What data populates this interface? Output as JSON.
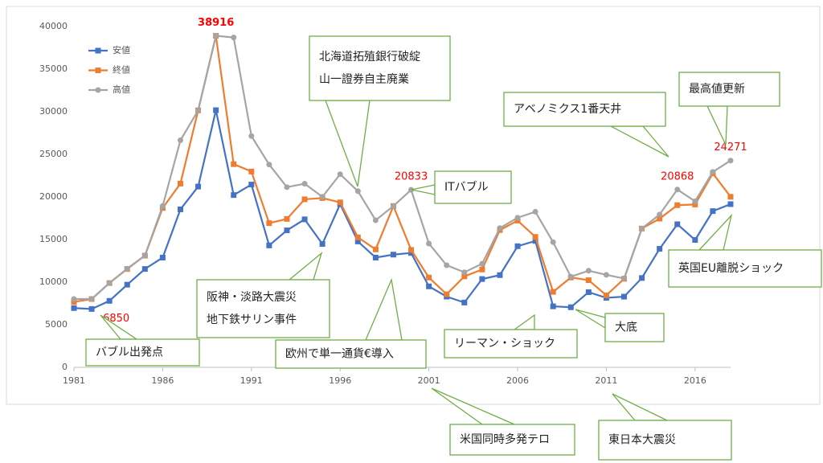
{
  "chart_data": {
    "type": "line",
    "x": [
      1981,
      1982,
      1983,
      1984,
      1985,
      1986,
      1987,
      1988,
      1989,
      1990,
      1991,
      1992,
      1993,
      1994,
      1995,
      1996,
      1997,
      1998,
      1999,
      2000,
      2001,
      2002,
      2003,
      2004,
      2005,
      2006,
      2007,
      2008,
      2009,
      2010,
      2011,
      2012,
      2013,
      2014,
      2015,
      2016,
      2017,
      2018
    ],
    "series": [
      {
        "name": "安値",
        "color": "#4472c4",
        "marker": "square",
        "labeled": [
          1
        ],
        "values": [
          6956,
          6850,
          7803,
          9703,
          11545,
          12881,
          18544,
          21217,
          30183,
          20221,
          21456,
          14309,
          16078,
          17369,
          14485,
          19161,
          14775,
          12879,
          13232,
          13423,
          9504,
          8303,
          7607,
          10365,
          10825,
          14219,
          14837,
          7162,
          7055,
          8824,
          8160,
          8295,
          10487,
          13910,
          16795,
          14952,
          18336,
          19156
        ]
      },
      {
        "name": "終値",
        "color": "#ed7d31",
        "marker": "square",
        "labeled": [
          8
        ],
        "values": [
          7681,
          8016,
          9893,
          11542,
          13113,
          18701,
          21564,
          30159,
          38916,
          23849,
          22984,
          16925,
          17417,
          19723,
          19868,
          19361,
          15259,
          13842,
          18934,
          13786,
          10543,
          8579,
          10677,
          11489,
          16111,
          17226,
          15308,
          8860,
          10546,
          10229,
          8455,
          10395,
          16291,
          17451,
          19034,
          19114,
          22765,
          20015
        ]
      },
      {
        "name": "高値",
        "color": "#a5a5a5",
        "marker": "circle",
        "labeled": [
          19,
          34,
          37
        ],
        "values": [
          8019,
          8026,
          9893,
          11578,
          13129,
          18936,
          26646,
          30159,
          38916,
          38713,
          27147,
          23801,
          21148,
          21553,
          20012,
          22667,
          20681,
          17264,
          18934,
          20833,
          14529,
          11980,
          11161,
          12163,
          16344,
          17563,
          18262,
          14691,
          10640,
          11339,
          10857,
          10433,
          16291,
          17935,
          20868,
          19494,
          22939,
          24271
        ]
      }
    ],
    "xlim": [
      1981,
      2018
    ],
    "xticks": [
      1981,
      1986,
      1991,
      1996,
      2001,
      2006,
      2011,
      2016
    ],
    "ylim": [
      0,
      40000
    ],
    "yticks": [
      0,
      5000,
      10000,
      15000,
      20000,
      25000,
      30000,
      35000,
      40000
    ],
    "legend": "top-left",
    "annotations": [
      {
        "lines": [
          "北海道拓殖銀行破綻",
          "山一證券自主廃業"
        ]
      },
      {
        "lines": [
          "ITバブル"
        ]
      },
      {
        "lines": [
          "アベノミクス1番天井"
        ]
      },
      {
        "lines": [
          "最高値更新"
        ]
      },
      {
        "lines": [
          "英国EU離脱ショック"
        ]
      },
      {
        "lines": [
          "阪神・淡路大震災",
          "地下鉄サリン事件"
        ]
      },
      {
        "lines": [
          "バブル出発点"
        ]
      },
      {
        "lines": [
          "欧州で単一通貨€導入"
        ]
      },
      {
        "lines": [
          "リーマン・ショック"
        ]
      },
      {
        "lines": [
          "大底"
        ]
      },
      {
        "lines": [
          "米国同時多発テロ"
        ]
      },
      {
        "lines": [
          "東日本大震災"
        ]
      }
    ]
  }
}
